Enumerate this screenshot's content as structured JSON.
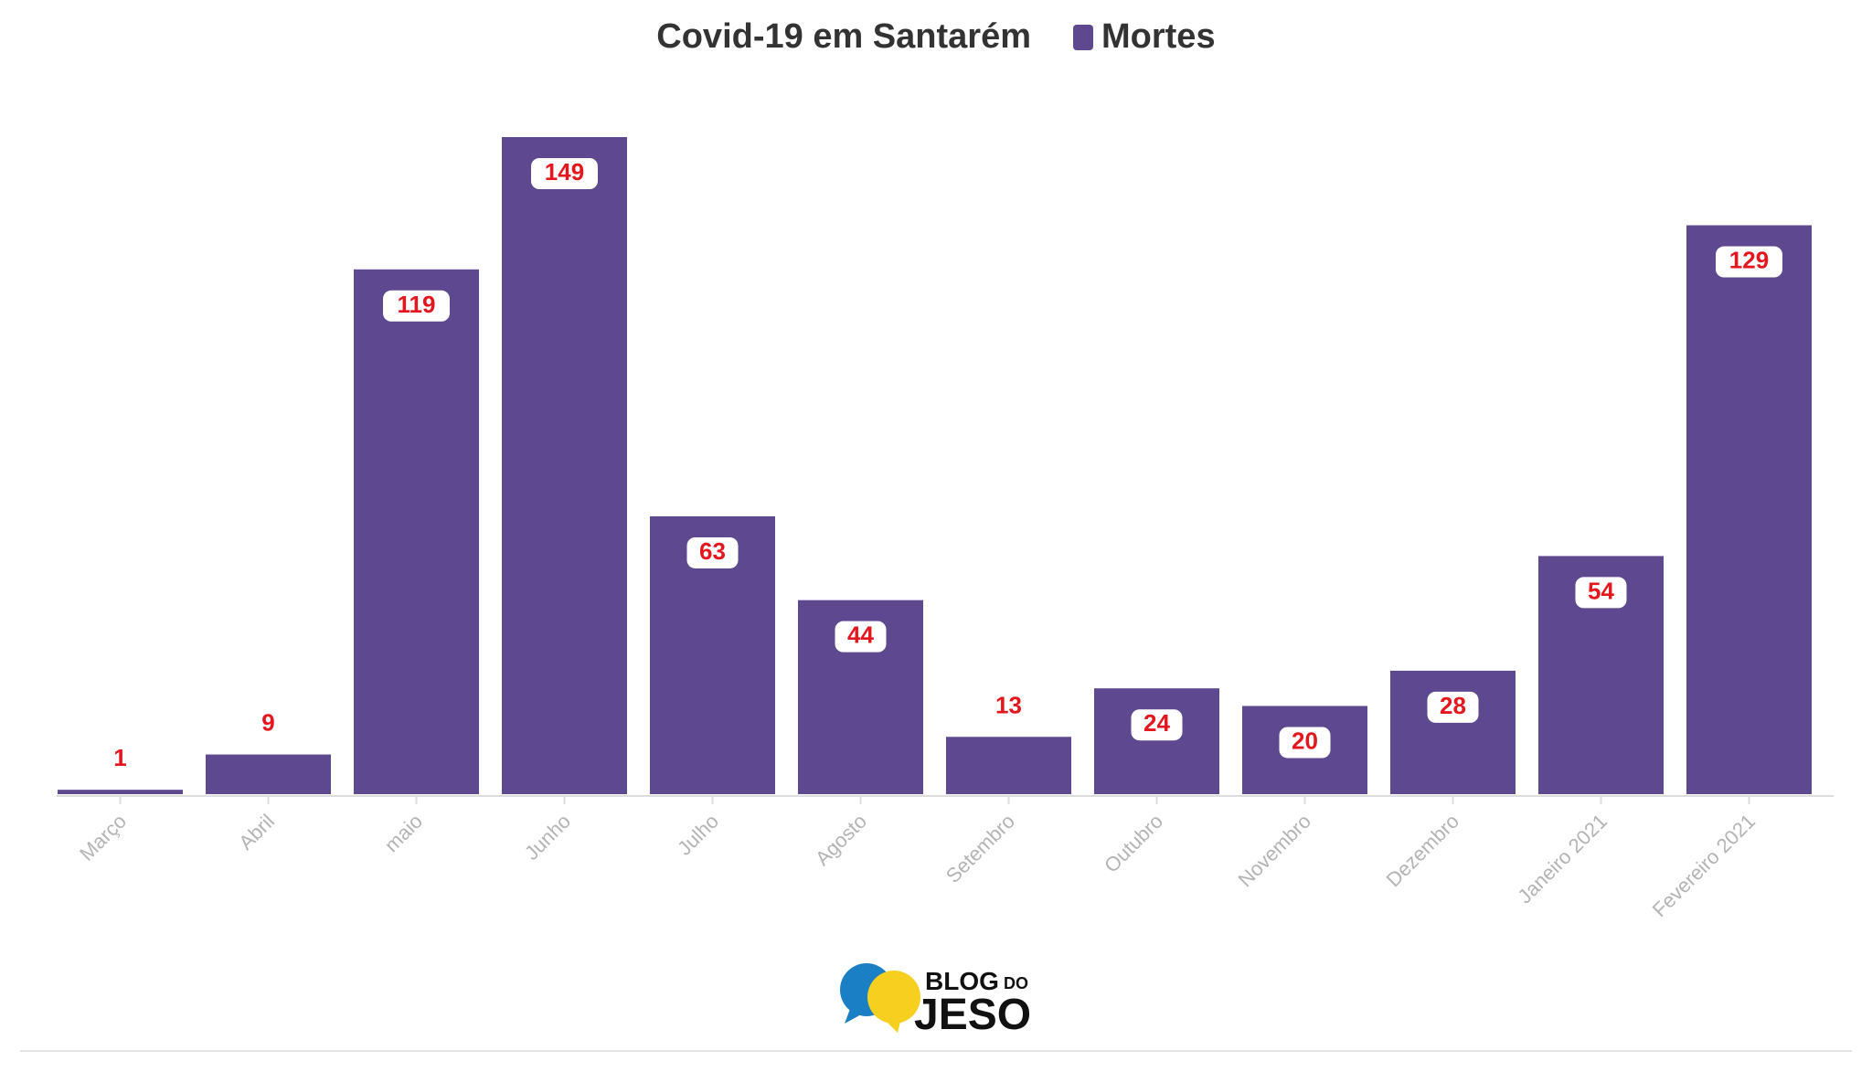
{
  "chart_data": {
    "type": "bar",
    "title": "Covid-19 em Santarém",
    "categories": [
      "Março",
      "Abril",
      "maio",
      "Junho",
      "Julho",
      "Agosto",
      "Setembro",
      "Outubro",
      "Novembro",
      "Dezembro",
      "Janeiro 2021",
      "Fevereiro 2021"
    ],
    "series": [
      {
        "name": "Mortes",
        "values": [
          1,
          9,
          119,
          149,
          63,
          44,
          13,
          24,
          20,
          28,
          54,
          129
        ],
        "color": "#5e4890"
      }
    ],
    "xlabel": "",
    "ylabel": "",
    "ylim": [
      0,
      149
    ],
    "grid": false,
    "legend": "top",
    "label_color": "#e3171d"
  },
  "branding": {
    "logo_line1": "BLOG",
    "logo_line1_small": "DO",
    "logo_line2": "JESO",
    "blue": "#1a7fc4",
    "yellow": "#f6cf1f"
  }
}
